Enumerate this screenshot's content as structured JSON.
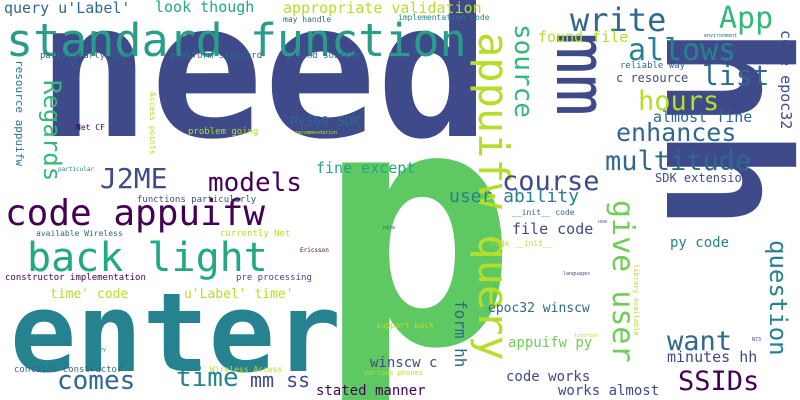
{
  "palette": {
    "background": "#ffffff",
    "dark-purple": "#440154",
    "indigo": "#3e4a89",
    "slate-blue": "#414487",
    "steel-blue": "#31688e",
    "teal": "#26828e",
    "sea-green": "#1f9e89",
    "green": "#35b779",
    "light-green": "#6ece58",
    "lime": "#b5de2b",
    "yellow": "#fde725"
  },
  "words": [
    {
      "text": "need",
      "color": "#3e4a89"
    },
    {
      "text": "p",
      "color": "#5ec962"
    },
    {
      "text": "hh",
      "color": "#3e4a89"
    },
    {
      "text": "enter",
      "color": "#26828e"
    },
    {
      "text": "standard function",
      "color": "#2a9d8a"
    },
    {
      "text": "mm",
      "color": "#3e4a89"
    },
    {
      "text": "code appuifw",
      "color": "#440154"
    },
    {
      "text": "back light",
      "color": "#22a884"
    },
    {
      "text": "appuifw query",
      "color": "#b5de2b"
    },
    {
      "text": "give user",
      "color": "#6ece58"
    },
    {
      "text": "query u'Label'",
      "color": "#31688e"
    },
    {
      "text": "look though",
      "color": "#22a884"
    },
    {
      "text": "appropriate validation",
      "color": "#b5de2b"
    },
    {
      "text": "write",
      "color": "#31688e"
    },
    {
      "text": "App",
      "color": "#35b779"
    },
    {
      "text": "allows",
      "color": "#26828e"
    },
    {
      "text": "list",
      "color": "#31688e"
    },
    {
      "text": "hours",
      "color": "#b5de2b"
    },
    {
      "text": "source",
      "color": "#35b779"
    },
    {
      "text": "enhances",
      "color": "#31688e"
    },
    {
      "text": "multitude",
      "color": "#31688e"
    },
    {
      "text": "course",
      "color": "#3e4a89"
    },
    {
      "text": "J2ME",
      "color": "#3e4a89"
    },
    {
      "text": "models",
      "color": "#440154"
    },
    {
      "text": "Regards",
      "color": "#35b779"
    },
    {
      "text": "question",
      "color": "#26828e"
    },
    {
      "text": "want",
      "color": "#31688e"
    },
    {
      "text": "SSIDs",
      "color": "#440154"
    },
    {
      "text": "comes",
      "color": "#31688e"
    },
    {
      "text": "time",
      "color": "#26828e"
    },
    {
      "text": "mm ss",
      "color": "#3e4a89"
    },
    {
      "text": "user ability",
      "color": "#26828e"
    },
    {
      "text": "fine except",
      "color": "#22a884"
    },
    {
      "text": "found file",
      "color": "#b5de2b"
    },
    {
      "text": "code epoc32",
      "color": "#3e4a89"
    },
    {
      "text": "almost fine",
      "color": "#31688e"
    },
    {
      "text": "PyS60 SDK",
      "color": "#31688e"
    },
    {
      "text": "SDK extension",
      "color": "#3e4a89"
    },
    {
      "text": "file code",
      "color": "#3e4a89"
    },
    {
      "text": "form hh",
      "color": "#31688e"
    },
    {
      "text": "epoc32 winscw",
      "color": "#31688e"
    },
    {
      "text": "appuifw py",
      "color": "#6ece58"
    },
    {
      "text": "minutes hh",
      "color": "#3e4a89"
    },
    {
      "text": "winscw c",
      "color": "#3e4a89"
    },
    {
      "text": "code works",
      "color": "#3e4a89"
    },
    {
      "text": "works almost",
      "color": "#3e4a89"
    },
    {
      "text": "stated manner",
      "color": "#440154"
    },
    {
      "text": "py code",
      "color": "#26828e"
    },
    {
      "text": "time' code",
      "color": "#b5de2b"
    },
    {
      "text": "u'Label' time'",
      "color": "#b5de2b"
    },
    {
      "text": "c resource",
      "color": "#3e4a89"
    },
    {
      "text": "reliable way",
      "color": "#31688e"
    },
    {
      "text": "resource appuifw",
      "color": "#2a788e"
    },
    {
      "text": "particularly code",
      "color": "#31688e"
    },
    {
      "text": "platform standard",
      "color": "#31688e"
    },
    {
      "text": "find sources",
      "color": "#31688e"
    },
    {
      "text": "may handle",
      "color": "#31688e"
    },
    {
      "text": "implementation code",
      "color": "#26828e"
    },
    {
      "text": "Net CF",
      "color": "#440154"
    },
    {
      "text": "Access points",
      "color": "#b5de2b"
    },
    {
      "text": "problem going",
      "color": "#b5de2b"
    },
    {
      "text": "recommendation",
      "color": "#b5de2b"
    },
    {
      "text": "particular",
      "color": "#26828e"
    },
    {
      "text": "functions particularly",
      "color": "#3e4a89"
    },
    {
      "text": "available Wireless",
      "color": "#31688e"
    },
    {
      "text": "currently Net",
      "color": "#b5de2b"
    },
    {
      "text": "constructor implementation",
      "color": "#440154"
    },
    {
      "text": "pre processing",
      "color": "#3e4a89"
    },
    {
      "text": "Ericsson",
      "color": "#440154"
    },
    {
      "text": "nice",
      "color": "#3e4a89"
    },
    {
      "text": "__init__ code",
      "color": "#31688e"
    },
    {
      "text": "code __init__",
      "color": "#b5de2b"
    },
    {
      "text": "use",
      "color": "#3e4a89"
    },
    {
      "text": "languages",
      "color": "#3e4a89"
    },
    {
      "text": "library available",
      "color": "#b5de2b"
    },
    {
      "text": "support back",
      "color": "#b5de2b"
    },
    {
      "text": "tutorial",
      "color": "#b5de2b"
    },
    {
      "text": "N73",
      "color": "#3e4a89"
    },
    {
      "text": "Sony",
      "color": "#26828e"
    },
    {
      "text": "contains constructor",
      "color": "#31688e"
    },
    {
      "text": "Wireless Access",
      "color": "#b5de2b"
    },
    {
      "text": "various phones",
      "color": "#b5de2b"
    },
    {
      "text": "environment",
      "color": "#31688e"
    }
  ]
}
